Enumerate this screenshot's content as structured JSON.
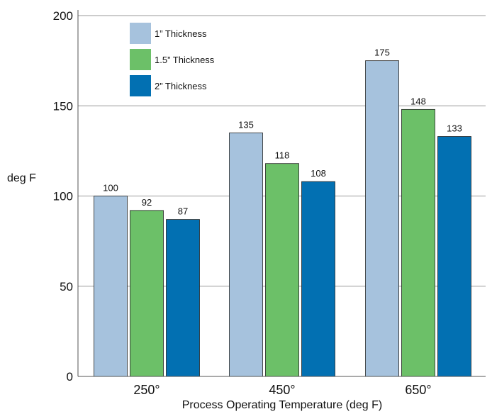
{
  "chart_data": {
    "type": "bar",
    "categories": [
      "250°",
      "450°",
      "650°"
    ],
    "series": [
      {
        "name": "1” Thickness",
        "values": [
          100,
          135,
          175
        ],
        "color": "#a6c2dd"
      },
      {
        "name": "1.5” Thickness",
        "values": [
          92,
          118,
          148
        ],
        "color": "#6cc068"
      },
      {
        "name": "2” Thickness",
        "values": [
          87,
          108,
          133
        ],
        "color": "#0270b2"
      }
    ],
    "xlabel": "Process Operating Temperature (deg F)",
    "ylabel": "deg F",
    "ylim": [
      0,
      200
    ],
    "yticks": [
      0,
      50,
      100,
      150,
      200
    ],
    "grid": true,
    "legend_position": "top-left"
  }
}
